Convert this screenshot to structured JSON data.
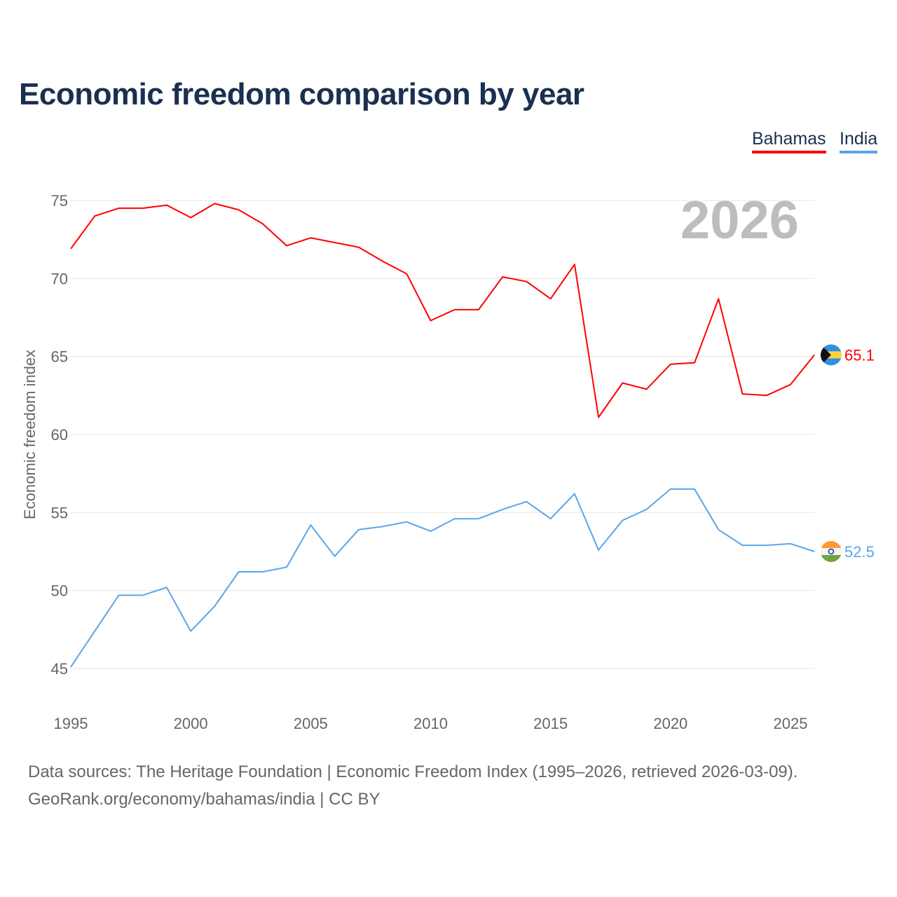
{
  "title": "Economic freedom comparison by year",
  "legend": [
    "Bahamas",
    "India"
  ],
  "footer": {
    "line1": "Data sources: The Heritage Foundation | Economic Freedom Index (1995–2026, retrieved 2026-03-09).",
    "line2": "GeoRank.org/economy/bahamas/india | CC BY"
  },
  "chart_data": {
    "type": "line",
    "title": "Economic freedom comparison by year",
    "xlabel": "",
    "ylabel": "Economic freedom index",
    "year_label": "2026",
    "xlim": [
      1995,
      2026
    ],
    "ylim": [
      43,
      77
    ],
    "x_ticks": [
      1995,
      2000,
      2005,
      2010,
      2015,
      2020,
      2025
    ],
    "y_ticks": [
      45,
      50,
      55,
      60,
      65,
      70,
      75
    ],
    "grid": true,
    "legend_position": "top-right",
    "x": [
      1995,
      1996,
      1997,
      1998,
      1999,
      2000,
      2001,
      2002,
      2003,
      2004,
      2005,
      2006,
      2007,
      2008,
      2009,
      2010,
      2011,
      2012,
      2013,
      2014,
      2015,
      2016,
      2017,
      2018,
      2019,
      2020,
      2021,
      2022,
      2023,
      2024,
      2025,
      2026
    ],
    "series": [
      {
        "name": "Bahamas",
        "color": "#ff0000",
        "end_label": "65.1",
        "values": [
          71.9,
          74.0,
          74.5,
          74.5,
          74.7,
          73.9,
          74.8,
          74.4,
          73.5,
          72.1,
          72.6,
          72.3,
          72.0,
          71.1,
          70.3,
          67.3,
          68.0,
          68.0,
          70.1,
          69.8,
          68.7,
          70.9,
          61.1,
          63.3,
          62.9,
          64.5,
          64.6,
          68.7,
          62.6,
          62.5,
          63.2,
          65.1
        ]
      },
      {
        "name": "India",
        "color": "#5ba4e8",
        "end_label": "52.5",
        "values": [
          45.1,
          47.4,
          49.7,
          49.7,
          50.2,
          47.4,
          49.0,
          51.2,
          51.2,
          51.5,
          54.2,
          52.2,
          53.9,
          54.1,
          54.4,
          53.8,
          54.6,
          54.6,
          55.2,
          55.7,
          54.6,
          56.2,
          52.6,
          54.5,
          55.2,
          56.5,
          56.5,
          53.9,
          52.9,
          52.9,
          53.0,
          52.5
        ]
      }
    ]
  }
}
